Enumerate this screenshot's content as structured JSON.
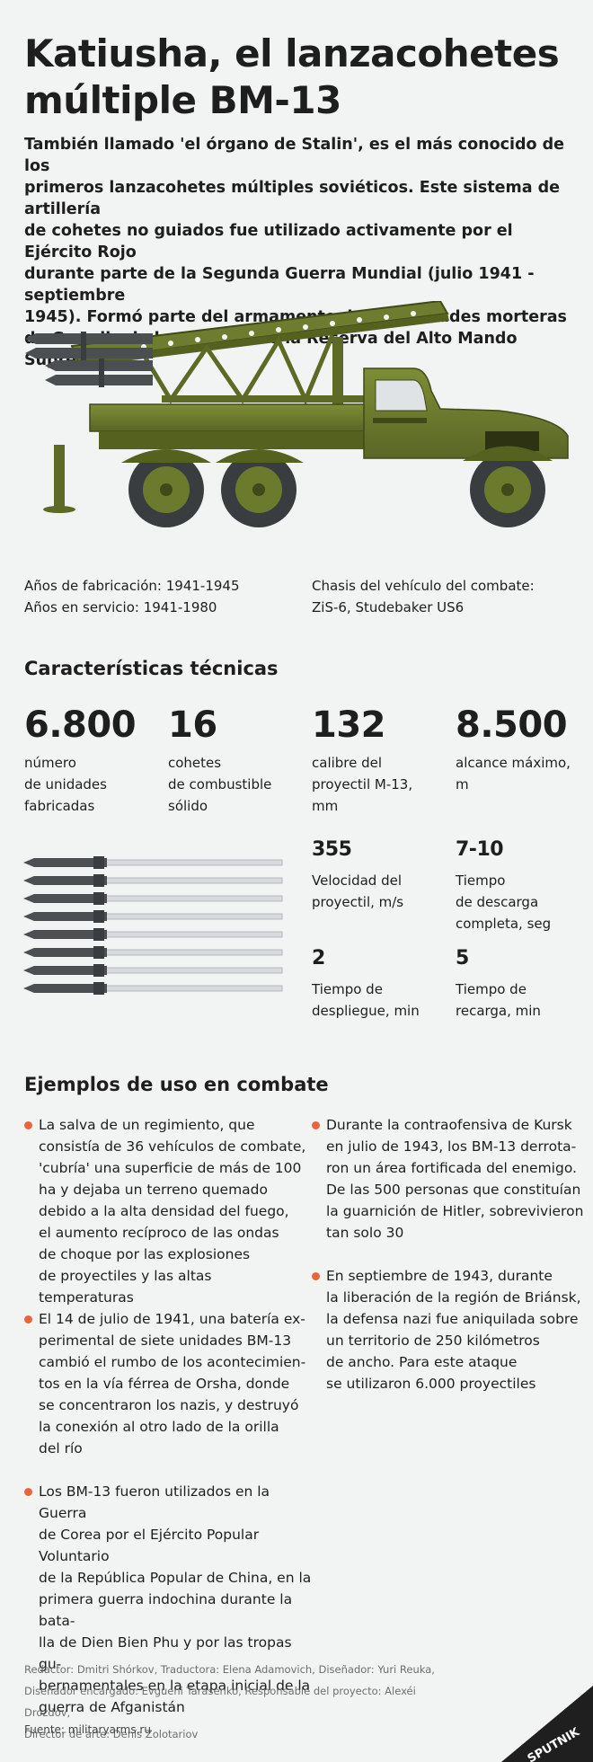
{
  "title_line1": "Katiusha, el lanzacohetes",
  "title_line2": "múltiple BM-13",
  "intro": [
    "También llamado 'el órgano de Stalin', es el más conocido de los",
    "primeros lanzacohetes múltiples soviéticos. Este sistema de artillería",
    "de cohetes no guiados fue utilizado activamente por el Ejército Rojo",
    "durante parte de la Segunda Guerra Mundial (julio 1941 - septiembre",
    "1945). Formó parte del armamento de las unidades morteras",
    "de Guardia de la artillería de la Reserva del Alto Mando Supremo."
  ],
  "info": {
    "production": "Años de fabricación: 1941-1945",
    "service": "Años en servicio: 1941-1980",
    "chassis_label": "Chasis del vehículo del combate:",
    "chassis_value": "ZiS-6, Studebaker US6"
  },
  "specs_heading": "Características técnicas",
  "specs": [
    {
      "value": "6.800",
      "label": [
        "número",
        "de unidades",
        "fabricadas"
      ]
    },
    {
      "value": "16",
      "label": [
        "cohetes",
        "de combustible",
        "sólido"
      ]
    },
    {
      "value": "132",
      "label": [
        "calibre del",
        "proyectil M-13,",
        "mm"
      ]
    },
    {
      "value": "8.500",
      "label": [
        "alcance máximo,",
        "m"
      ]
    },
    {
      "value": "355",
      "label": [
        "Velocidad del",
        "proyectil, m/s"
      ]
    },
    {
      "value": "7-10",
      "label": [
        "Tiempo",
        "de descarga",
        "completa, seg"
      ]
    },
    {
      "value": "2",
      "label": [
        "Tiempo de",
        "despliegue, min"
      ]
    },
    {
      "value": "5",
      "label": [
        "Tiempo de",
        "recarga, min"
      ]
    }
  ],
  "rocket_count": 8,
  "examples_heading": "Ejemplos de uso en combate",
  "examples": [
    [
      "La salva de un regimiento, que",
      "consistía de 36 vehículos de combate,",
      "'cubría' una superficie de más de 100",
      "ha y dejaba un terreno quemado",
      "debido a la alta densidad del fuego,",
      "el aumento recíproco de las ondas",
      "de choque por las explosiones",
      "de proyectiles y las altas temperaturas"
    ],
    [
      "El 14 de julio de 1941, una batería ex-",
      "perimental de siete unidades BM-13",
      "cambió el rumbo de los acontecimien-",
      "tos en la vía férrea de Orsha, donde",
      "se concentraron los nazis, y destruyó",
      "la conexión al otro lado de la orilla",
      "del río"
    ],
    [
      "Los BM-13 fueron utilizados en la Guerra",
      "de Corea por el Ejército Popular Voluntario",
      "de la República Popular de China, en la",
      "primera guerra indochina durante la bata-",
      "lla de Dien Bien Phu y por las tropas gu-",
      "bernamentales en la etapa inicial de la",
      "guerra de Afganistán"
    ],
    [
      "Durante la contraofensiva de Kursk",
      "en julio de 1943, los BM-13 derrota-",
      "ron un área fortificada del enemigo.",
      "De las 500 personas que constituían",
      "la guarnición de Hitler, sobrevivieron",
      "tan solo 30"
    ],
    [
      "En septiembre de 1943, durante",
      "la liberación de la región de Briánsk,",
      "la defensa nazi fue aniquilada sobre",
      "un territorio de 250 kilómetros",
      "de ancho. Para este ataque",
      "se utilizaron 6.000 proyectiles"
    ]
  ],
  "credits": [
    "Redactor: Dmitri Shórkov, Traductora: Elena Adamovich, Diseñador: Yuri Reuka,",
    "Diseñador encargado: Evgueni Tarasenko, Responsable del proyecto: Alexéi Drozdov,",
    "Director de arte: Denís Zolotariov"
  ],
  "source": "Fuente: militaryarms.ru",
  "logo_text": "SPUTNIK",
  "colors": {
    "accent": "#e8673a",
    "olive": "#6b7a2c",
    "olive_dark": "#4a5520",
    "background": "#f2f4f4"
  }
}
